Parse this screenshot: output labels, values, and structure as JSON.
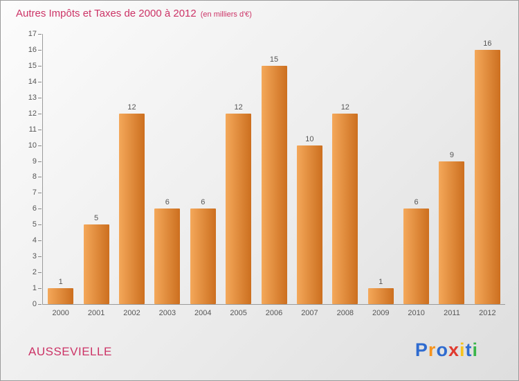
{
  "page": {
    "title": "Autres Impôts et Taxes de 2000 à 2012",
    "subtitle": "(en milliers d'€)",
    "footer_left": "AUSSEVIELLE"
  },
  "logo": {
    "name": "Proxiti",
    "letters": [
      {
        "ch": "P",
        "color": "#2e6bd0"
      },
      {
        "ch": "r",
        "color": "#f7941d"
      },
      {
        "ch": "o",
        "color": "#2e6bd0"
      },
      {
        "ch": "x",
        "color": "#e03a2f"
      },
      {
        "ch": "i",
        "color": "#f7c31d"
      },
      {
        "ch": "t",
        "color": "#2e6bd0"
      },
      {
        "ch": "i",
        "color": "#3ab54a"
      }
    ]
  },
  "chart_data": {
    "type": "bar",
    "title": "Autres Impôts et Taxes de 2000 à 2012",
    "subtitle": "(en milliers d'€)",
    "categories": [
      "2000",
      "2001",
      "2002",
      "2003",
      "2004",
      "2005",
      "2006",
      "2007",
      "2008",
      "2009",
      "2010",
      "2011",
      "2012"
    ],
    "values": [
      1,
      5,
      12,
      6,
      6,
      12,
      15,
      10,
      12,
      1,
      6,
      9,
      16
    ],
    "xlabel": "",
    "ylabel": "",
    "ylim": [
      0,
      17
    ],
    "ytick_step": 1,
    "grid": false,
    "legend": null,
    "bar_color_start": "#f4a85a",
    "bar_color_end": "#cc6f1f",
    "value_label_color": "#555555",
    "title_color": "#cc3366"
  }
}
